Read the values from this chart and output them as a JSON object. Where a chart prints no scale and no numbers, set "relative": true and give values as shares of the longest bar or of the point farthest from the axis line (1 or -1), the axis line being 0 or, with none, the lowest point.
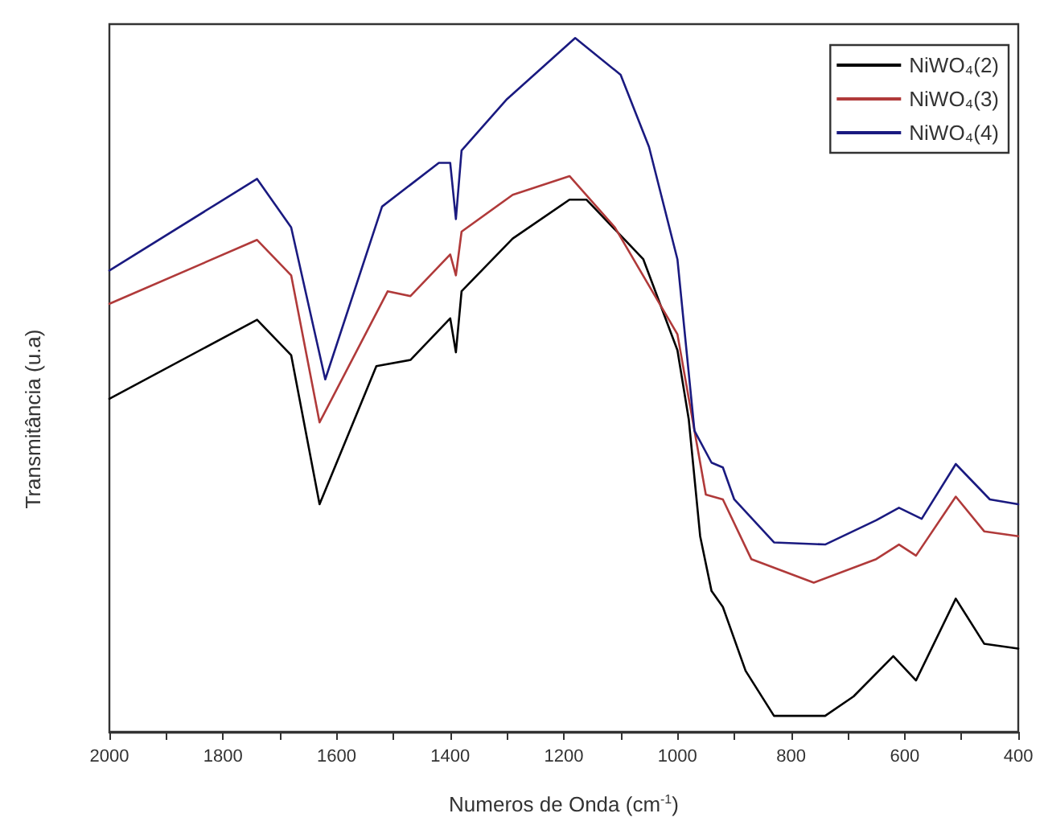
{
  "chart_data": {
    "type": "line",
    "xlabel": "Numeros de Onda (cm$^{-1}$)",
    "ylabel": "Transmitância (u.a)",
    "relative": true,
    "xlim": [
      2000,
      400
    ],
    "xticks": [
      2000,
      {
        "value": 1900,
        "label": null
      },
      1800,
      {
        "value": 1700,
        "label": null
      },
      1600,
      {
        "value": 1500,
        "label": null
      },
      1400,
      {
        "value": 1300,
        "label": null
      },
      1200,
      {
        "value": 1100,
        "label": null
      },
      1000,
      {
        "value": 900,
        "label": null
      },
      800,
      {
        "value": 700,
        "label": null
      },
      600,
      {
        "value": 500,
        "label": null
      },
      400
    ],
    "tick_labels": "x",
    "grid": false,
    "legend": "top right",
    "marker": "none",
    "line_style": "solid",
    "series": [
      {
        "name": "NiWO₄(2)",
        "color": "#000000",
        "x": [
          2000,
          1740,
          1680,
          1630,
          1530,
          1470,
          1400,
          1390,
          1380,
          1290,
          1190,
          1160,
          1060,
          1000,
          980,
          960,
          940,
          920,
          880,
          830,
          740,
          690,
          620,
          580,
          510,
          460,
          400
        ],
        "values": [
          0.48,
          0.594,
          0.543,
          0.328,
          0.527,
          0.536,
          0.596,
          0.547,
          0.635,
          0.711,
          0.767,
          0.767,
          0.681,
          0.55,
          0.45,
          0.282,
          0.203,
          0.18,
          0.088,
          0.023,
          0.023,
          0.051,
          0.109,
          0.074,
          0.192,
          0.127,
          0.12
        ]
      },
      {
        "name": "NiWO₄(3)",
        "color": "#b03a3a",
        "x": [
          2000,
          1740,
          1680,
          1630,
          1510,
          1470,
          1400,
          1390,
          1380,
          1290,
          1190,
          1110,
          1000,
          970,
          950,
          920,
          870,
          760,
          650,
          610,
          580,
          510,
          460,
          400
        ],
        "values": [
          0.617,
          0.709,
          0.658,
          0.446,
          0.635,
          0.628,
          0.688,
          0.658,
          0.721,
          0.774,
          0.801,
          0.727,
          0.573,
          0.434,
          0.342,
          0.335,
          0.249,
          0.215,
          0.249,
          0.27,
          0.254,
          0.339,
          0.289,
          0.282
        ]
      },
      {
        "name": "NiWO₄(4)",
        "color": "#1a1a80",
        "x": [
          2000,
          1740,
          1680,
          1620,
          1520,
          1420,
          1400,
          1390,
          1380,
          1300,
          1180,
          1100,
          1050,
          1000,
          970,
          940,
          920,
          900,
          830,
          740,
          650,
          610,
          570,
          510,
          450,
          400
        ],
        "values": [
          0.665,
          0.797,
          0.727,
          0.508,
          0.757,
          0.82,
          0.82,
          0.739,
          0.838,
          0.912,
          1,
          0.947,
          0.843,
          0.681,
          0.434,
          0.388,
          0.381,
          0.335,
          0.273,
          0.27,
          0.305,
          0.323,
          0.307,
          0.386,
          0.335,
          0.328
        ]
      }
    ]
  }
}
